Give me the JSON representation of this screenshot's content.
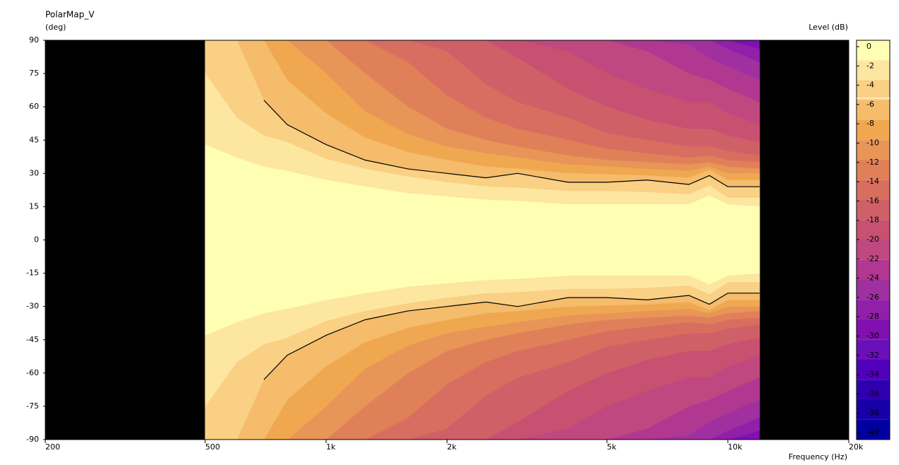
{
  "chart_data": {
    "type": "contour",
    "title": "PolarMap_V",
    "y_label": "(deg)",
    "x_label": "Frequency  (Hz)",
    "colorbar_label": "Level  (dB)",
    "xlim": [
      200,
      20000
    ],
    "x_scale": "log",
    "ylim": [
      -90,
      90
    ],
    "xticks": [
      200,
      500,
      {
        "value": 1000,
        "label": "1k"
      },
      {
        "value": 2000,
        "label": "2k"
      },
      {
        "value": 5000,
        "label": "5k"
      },
      {
        "value": 10000,
        "label": "10k"
      },
      {
        "value": 20000,
        "label": "20k"
      }
    ],
    "yticks": [
      90,
      75,
      60,
      45,
      30,
      15,
      0,
      -15,
      -30,
      -45,
      -60,
      -75,
      -90
    ],
    "clim": [
      -40,
      0
    ],
    "levels": [
      0,
      -2,
      -4,
      -6,
      -8,
      -10,
      -12,
      -14,
      -16,
      -18,
      -20,
      -22,
      -24,
      -26,
      -28,
      -30,
      -32,
      -34,
      -36,
      -38,
      -40
    ],
    "colors": [
      "#ffffb4",
      "#fde6a0",
      "#f9d084",
      "#f5bc6c",
      "#f0a850",
      "#e89558",
      "#e08058",
      "#d86e60",
      "#d06068",
      "#c85070",
      "#c04880",
      "#b03890",
      "#a030a0",
      "#9020a8",
      "#8010b0",
      "#6a10b8",
      "#5000b8",
      "#3000b0",
      "#1800a8",
      "#0000a0"
    ],
    "contour_line_level": -6,
    "x": [
      500,
      600,
      700,
      800,
      1000,
      1250,
      1600,
      2000,
      2500,
      3000,
      4000,
      5000,
      6300,
      8000,
      9000,
      10000,
      12000
    ],
    "contours": [
      {
        "level": -28,
        "angles": [
          90,
          90,
          90,
          90,
          90,
          90,
          90,
          90,
          90,
          90,
          90,
          90,
          90,
          90,
          90,
          90,
          86
        ]
      },
      {
        "level": -26,
        "angles": [
          90,
          90,
          90,
          90,
          90,
          90,
          90,
          90,
          90,
          90,
          90,
          90,
          90,
          90,
          90,
          86,
          80
        ]
      },
      {
        "level": -24,
        "angles": [
          90,
          90,
          90,
          90,
          90,
          90,
          90,
          90,
          90,
          90,
          90,
          90,
          90,
          88,
          82,
          78,
          72
        ]
      },
      {
        "level": -22,
        "angles": [
          90,
          90,
          90,
          90,
          90,
          90,
          90,
          90,
          90,
          90,
          90,
          90,
          85,
          75,
          72,
          68,
          62
        ]
      },
      {
        "level": -20,
        "angles": [
          90,
          90,
          90,
          90,
          90,
          90,
          90,
          90,
          90,
          90,
          85,
          75,
          68,
          62,
          62,
          57,
          52
        ]
      },
      {
        "level": -18,
        "angles": [
          90,
          90,
          90,
          90,
          90,
          90,
          90,
          90,
          90,
          82,
          68,
          60,
          54,
          50,
          50,
          47,
          44
        ]
      },
      {
        "level": -16,
        "angles": [
          90,
          90,
          90,
          90,
          90,
          90,
          90,
          85,
          70,
          62,
          55,
          48,
          45,
          42,
          42,
          40,
          38
        ]
      },
      {
        "level": -14,
        "angles": [
          90,
          90,
          90,
          90,
          90,
          90,
          80,
          65,
          55,
          50,
          45,
          41,
          39,
          37,
          38,
          36,
          35
        ]
      },
      {
        "level": -12,
        "angles": [
          90,
          90,
          90,
          90,
          90,
          75,
          60,
          50,
          45,
          42,
          38,
          36,
          35,
          34,
          35,
          33,
          32
        ]
      },
      {
        "level": -10,
        "angles": [
          90,
          90,
          90,
          90,
          75,
          58,
          47.5,
          42,
          39,
          37,
          34,
          33,
          32,
          31,
          33,
          30,
          30
        ]
      },
      {
        "level": -8,
        "angles": [
          90,
          90,
          90,
          72,
          57,
          46,
          39.5,
          36,
          33,
          32,
          30,
          29.5,
          29,
          28,
          31.5,
          27,
          27
        ]
      },
      {
        "level": -6,
        "angles": [
          90,
          90,
          63,
          52,
          43,
          36,
          32,
          30,
          28,
          30,
          26,
          26,
          27,
          25,
          29,
          24,
          24
        ]
      },
      {
        "level": -4,
        "angles": [
          75,
          55,
          47,
          44,
          36.5,
          32,
          28.5,
          26,
          24,
          23.5,
          22,
          22,
          21.5,
          20.5,
          24.5,
          19,
          19
        ]
      },
      {
        "level": -2,
        "angles": [
          43,
          37,
          33,
          31,
          27,
          24,
          21,
          19.5,
          18,
          17.5,
          16,
          16,
          16,
          16,
          20,
          16,
          15
        ]
      }
    ]
  }
}
